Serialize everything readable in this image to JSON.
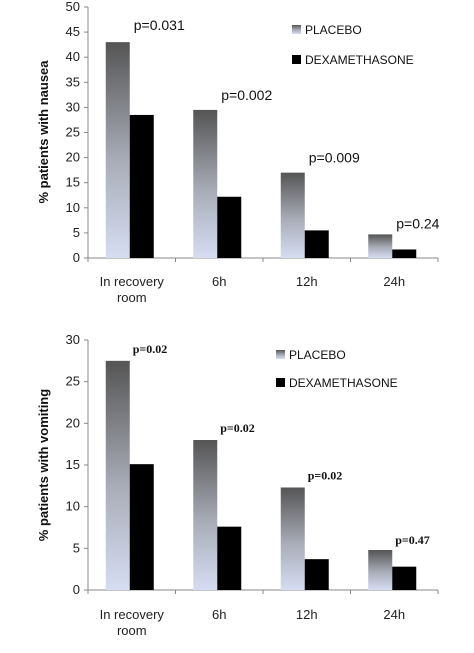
{
  "chart_data": [
    {
      "type": "bar",
      "categories": [
        "In recovery room",
        "6h",
        "12h",
        "24h"
      ],
      "category_lines": [
        [
          "In recovery",
          "room"
        ],
        [
          "6h"
        ],
        [
          "12h"
        ],
        [
          "24h"
        ]
      ],
      "series": [
        {
          "name": "PLACEBO",
          "values": [
            43,
            29.5,
            17,
            4.7
          ],
          "color": "gradient-gray"
        },
        {
          "name": "DEXAMETHASONE",
          "values": [
            28.5,
            12.2,
            5.5,
            1.7
          ],
          "color": "#000000"
        }
      ],
      "annotations": [
        "p=0.031",
        "p=0.002",
        "p=0.009",
        "p=0.24"
      ],
      "ylabel": "% patients with nausea",
      "ylim": [
        0,
        50
      ],
      "yticks": [
        0,
        5,
        10,
        15,
        20,
        25,
        30,
        35,
        40,
        45,
        50
      ],
      "legend_position": "top-right",
      "grid": false
    },
    {
      "type": "bar",
      "categories": [
        "In recovery room",
        "6h",
        "12h",
        "24h"
      ],
      "category_lines": [
        [
          "In recovery",
          "room"
        ],
        [
          "6h"
        ],
        [
          "12h"
        ],
        [
          "24h"
        ]
      ],
      "series": [
        {
          "name": "PLACEBO",
          "values": [
            27.5,
            18,
            12.3,
            4.8
          ],
          "color": "gradient-gray"
        },
        {
          "name": "DEXAMETHASONE",
          "values": [
            15.1,
            7.6,
            3.7,
            2.8
          ],
          "color": "#000000"
        }
      ],
      "annotations": [
        "p=0.02",
        "p=0.02",
        "p=0.02",
        "p=0.47"
      ],
      "ylabel": "% patients with vomiting",
      "ylim": [
        0,
        30
      ],
      "yticks": [
        0,
        5,
        10,
        15,
        20,
        25,
        30
      ],
      "legend_position": "top-right",
      "grid": false
    }
  ]
}
